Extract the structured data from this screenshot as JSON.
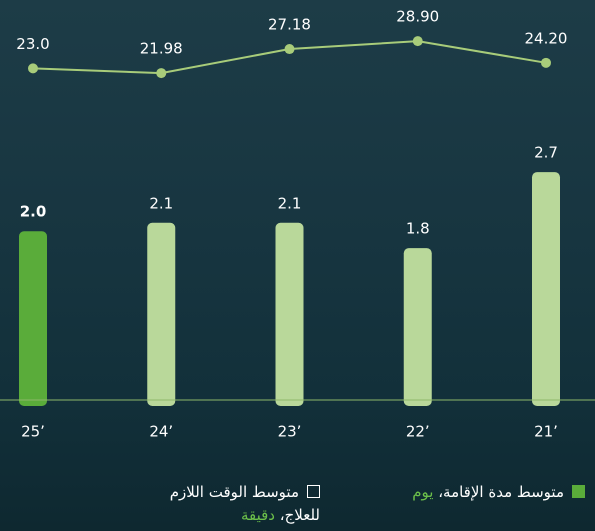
{
  "chart_data": {
    "type": "bar-line",
    "categories": [
      "25’",
      "24’",
      "23’",
      "22’",
      "21’"
    ],
    "series": [
      {
        "name": "متوسط مدة الإقامة،",
        "unit": "يوم",
        "type": "bar",
        "color": "#b9d89a",
        "colors": [
          "#5aac3a",
          "#b9d89a",
          "#b9d89a",
          "#b9d89a",
          "#b9d89a"
        ],
        "values": [
          2.0,
          2.1,
          2.1,
          1.8,
          2.7
        ],
        "value_labels": [
          "2.0",
          "2.1",
          "2.1",
          "1.8",
          "2.7"
        ]
      },
      {
        "name": "متوسط الوقت اللازم للعلاج،",
        "unit": "دقيقة",
        "type": "line",
        "axis": "y2",
        "color": "#a8cc7a",
        "values": [
          23.0,
          21.98,
          27.18,
          28.9,
          24.2
        ],
        "value_labels": [
          "23.0",
          "21.98",
          "27.18",
          "28.90",
          "24.20"
        ]
      }
    ],
    "ylim": [
      0,
      4.74
    ],
    "y2lim": [
      -48.8,
      37.8
    ],
    "unit_color": "#6cc04a"
  }
}
